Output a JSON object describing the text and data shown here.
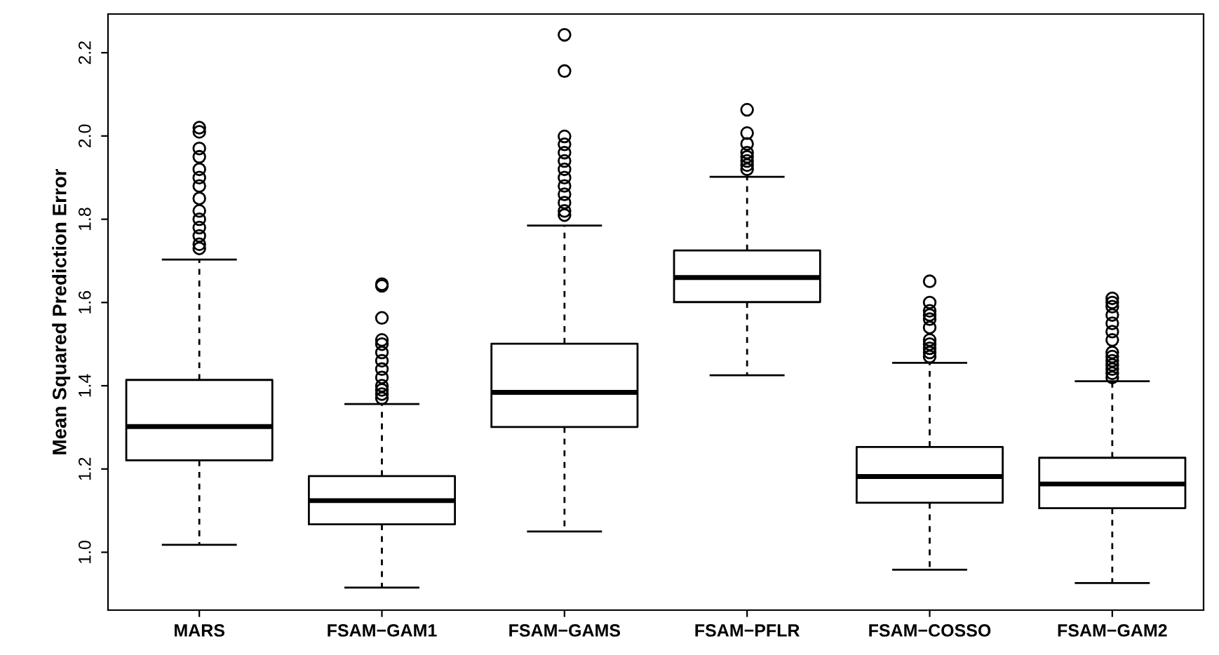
{
  "chart_data": {
    "type": "box",
    "ylabel": "Mean Squared Prediction Error",
    "categories": [
      "MARS",
      "FSAM−GAM1",
      "FSAM−GAMS",
      "FSAM−PFLR",
      "FSAM−COSSO",
      "FSAM−GAM2"
    ],
    "boxes": [
      {
        "low": 1.018,
        "q1": 1.221,
        "median": 1.302,
        "q3": 1.414,
        "high": 1.703,
        "outliers": [
          2.02,
          2.01,
          1.97,
          1.95,
          1.92,
          1.9,
          1.88,
          1.85,
          1.82,
          1.8,
          1.78,
          1.76,
          1.74,
          1.73
        ]
      },
      {
        "low": 0.915,
        "q1": 1.067,
        "median": 1.124,
        "q3": 1.183,
        "high": 1.356,
        "outliers": [
          1.644,
          1.64,
          1.563,
          1.51,
          1.5,
          1.48,
          1.46,
          1.44,
          1.42,
          1.4,
          1.39,
          1.38,
          1.37
        ]
      },
      {
        "low": 1.05,
        "q1": 1.301,
        "median": 1.384,
        "q3": 1.501,
        "high": 1.785,
        "outliers": [
          2.243,
          2.156,
          1.999,
          1.98,
          1.96,
          1.94,
          1.92,
          1.9,
          1.88,
          1.86,
          1.84,
          1.82,
          1.81
        ]
      },
      {
        "low": 1.425,
        "q1": 1.601,
        "median": 1.66,
        "q3": 1.725,
        "high": 1.902,
        "outliers": [
          2.063,
          2.007,
          1.981,
          1.96,
          1.95,
          1.94,
          1.93,
          1.92
        ]
      },
      {
        "low": 0.958,
        "q1": 1.119,
        "median": 1.182,
        "q3": 1.253,
        "high": 1.455,
        "outliers": [
          1.651,
          1.6,
          1.58,
          1.57,
          1.56,
          1.54,
          1.51,
          1.5,
          1.49,
          1.48,
          1.47
        ]
      },
      {
        "low": 0.926,
        "q1": 1.106,
        "median": 1.164,
        "q3": 1.227,
        "high": 1.411,
        "outliers": [
          1.61,
          1.6,
          1.59,
          1.57,
          1.55,
          1.53,
          1.51,
          1.48,
          1.47,
          1.46,
          1.45,
          1.44,
          1.43,
          1.42
        ]
      }
    ],
    "ylim": [
      0.861,
      2.293
    ],
    "yticks": [
      {
        "value": 1,
        "label": "1.0"
      },
      1.2,
      1.4,
      1.6,
      1.8,
      {
        "value": 2,
        "label": "2.0"
      },
      2.2
    ],
    "grid": false,
    "color": "#000000"
  }
}
